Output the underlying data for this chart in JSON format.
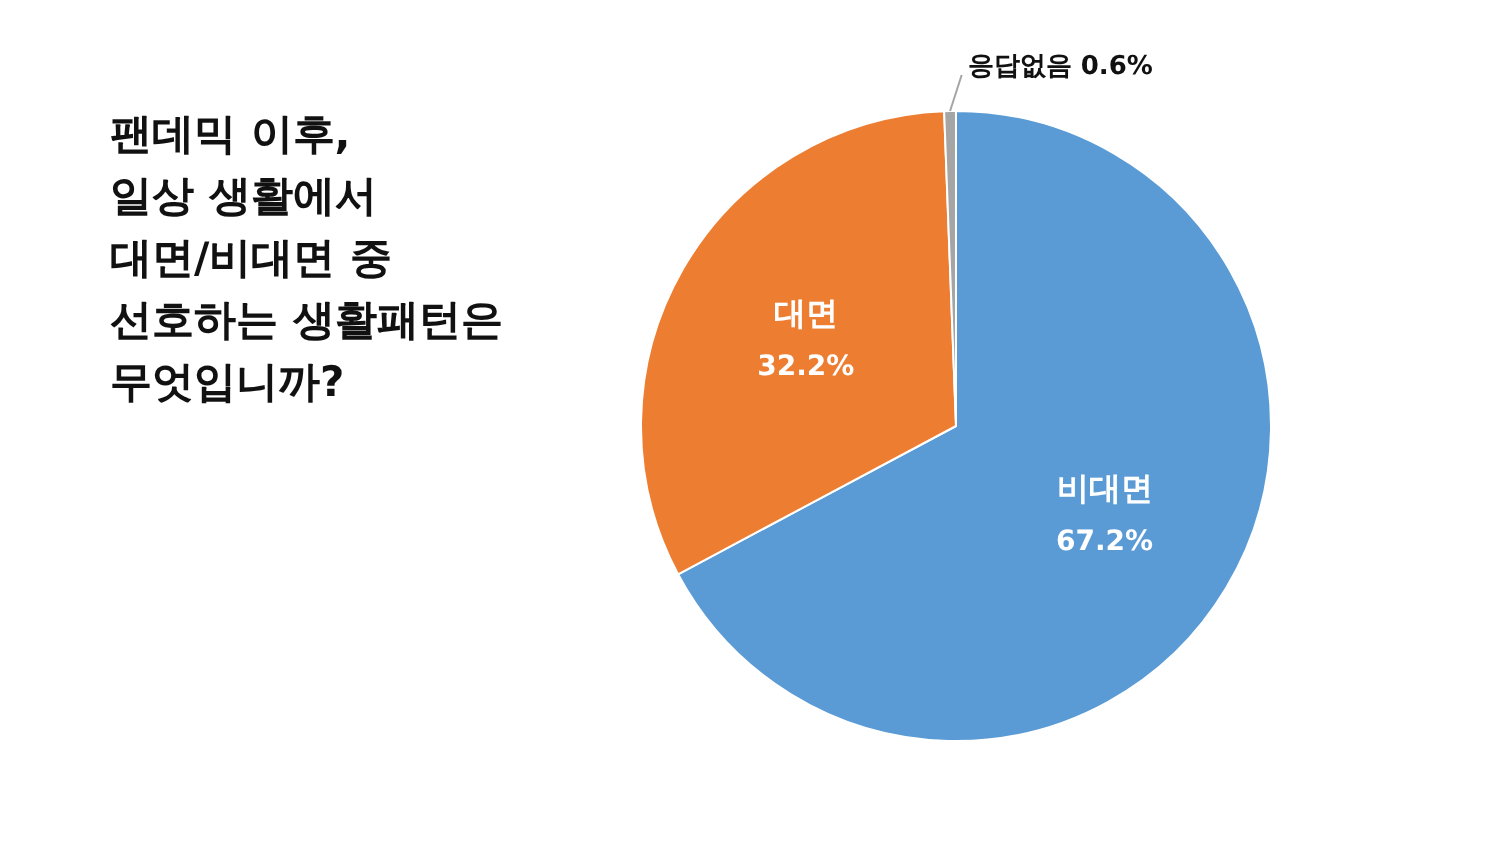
{
  "chart_data": {
    "type": "pie",
    "title": "팬데믹 이후,\n일상 생활에서\n대면/비대면 중\n선호하는 생활패턴은\n무엇입니까?",
    "categories": [
      "비대면",
      "대면",
      "응답없음"
    ],
    "values": [
      67.2,
      32.2,
      0.6
    ],
    "colors": [
      "#5b9bd5",
      "#ed7d31",
      "#a5a5a5"
    ],
    "value_labels": [
      "67.2%",
      "32.2%",
      "0.6%"
    ]
  }
}
